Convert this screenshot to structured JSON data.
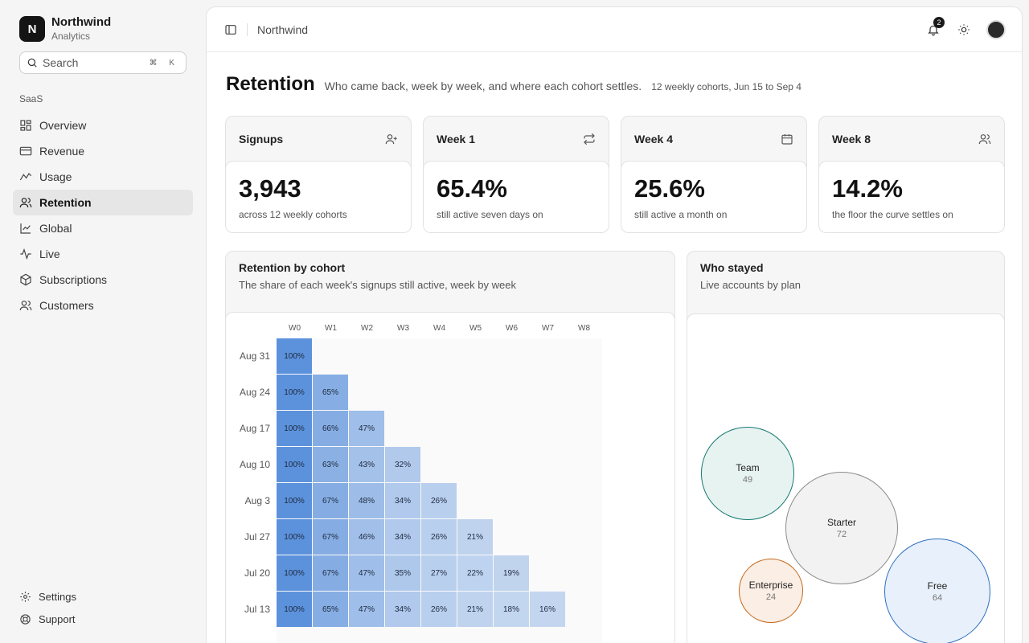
{
  "app": {
    "logo_letter": "N",
    "name": "Northwind",
    "subtitle": "Analytics"
  },
  "search": {
    "placeholder": "Search",
    "shortcut": "⌘ K"
  },
  "sidebar": {
    "section": "SaaS",
    "items": [
      {
        "label": "Overview",
        "icon": "grid-icon"
      },
      {
        "label": "Revenue",
        "icon": "card-icon"
      },
      {
        "label": "Usage",
        "icon": "activity-icon"
      },
      {
        "label": "Retention",
        "icon": "users-icon",
        "active": true
      },
      {
        "label": "Global",
        "icon": "chart-line-icon"
      },
      {
        "label": "Live",
        "icon": "pulse-icon"
      },
      {
        "label": "Subscriptions",
        "icon": "box-icon"
      },
      {
        "label": "Customers",
        "icon": "users-icon"
      }
    ],
    "footer": [
      {
        "label": "Settings",
        "icon": "gear-icon"
      },
      {
        "label": "Support",
        "icon": "lifebuoy-icon"
      }
    ]
  },
  "topbar": {
    "title": "Northwind",
    "notifications": "2"
  },
  "page": {
    "title": "Retention",
    "description": "Who came back, week by week, and where each cohort settles.",
    "meta": "12 weekly cohorts, Jun 15 to Sep 4"
  },
  "kpis": [
    {
      "label": "Signups",
      "value": "3,943",
      "sub": "across 12 weekly cohorts",
      "icon": "user-plus-icon"
    },
    {
      "label": "Week 1",
      "value": "65.4%",
      "sub": "still active seven days on",
      "icon": "repeat-icon"
    },
    {
      "label": "Week 4",
      "value": "25.6%",
      "sub": "still active a month on",
      "icon": "calendar-icon"
    },
    {
      "label": "Week 8",
      "value": "14.2%",
      "sub": "the floor the curve settles on",
      "icon": "users-icon"
    }
  ],
  "heatmap": {
    "title": "Retention by cohort",
    "subtitle": "The share of each week's signups still active, week by week",
    "columns": [
      "W0",
      "W1",
      "W2",
      "W3",
      "W4",
      "W5",
      "W6",
      "W7",
      "W8"
    ],
    "rows": [
      {
        "label": "Aug 31",
        "values": [
          100
        ]
      },
      {
        "label": "Aug 24",
        "values": [
          100,
          65
        ]
      },
      {
        "label": "Aug 17",
        "values": [
          100,
          66,
          47
        ]
      },
      {
        "label": "Aug 10",
        "values": [
          100,
          63,
          43,
          32
        ]
      },
      {
        "label": "Aug 3",
        "values": [
          100,
          67,
          48,
          34,
          26
        ]
      },
      {
        "label": "Jul 27",
        "values": [
          100,
          67,
          46,
          34,
          26,
          21
        ]
      },
      {
        "label": "Jul 20",
        "values": [
          100,
          67,
          47,
          35,
          27,
          22,
          19
        ]
      },
      {
        "label": "Jul 13",
        "values": [
          100,
          65,
          47,
          34,
          26,
          21,
          18,
          16
        ]
      }
    ]
  },
  "plans": {
    "title": "Who stayed",
    "subtitle": "Live accounts by plan",
    "items": [
      {
        "name": "Team",
        "value": "49",
        "color": "#177a72",
        "fill": "#e7f3f1"
      },
      {
        "name": "Starter",
        "value": "72",
        "color": "#8c8c8c",
        "fill": "#f2f2f2"
      },
      {
        "name": "Enterprise",
        "value": "24",
        "color": "#c4691c",
        "fill": "#fbeee4"
      },
      {
        "name": "Free",
        "value": "64",
        "color": "#2f6fc0",
        "fill": "#e8f0fb"
      }
    ]
  },
  "colors": {
    "accent": "#4a86d8"
  }
}
